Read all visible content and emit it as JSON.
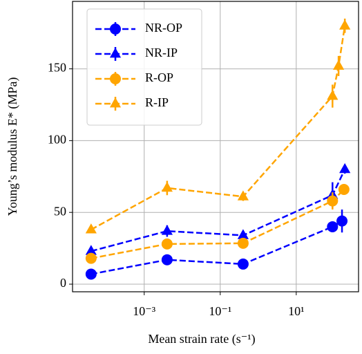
{
  "chart_data": {
    "type": "line",
    "xlabel": "Mean strain rate (s⁻¹)",
    "ylabel": "Young’s modulus E* (MPa)",
    "xscale": "log",
    "xlim": [
      1.3e-05,
      436
    ],
    "ylim": [
      -5.3,
      197
    ],
    "xticks": [
      {
        "value": 0.001,
        "label": "10⁻³"
      },
      {
        "value": 0.1,
        "label": "10⁻¹"
      },
      {
        "value": 10,
        "label": "10¹"
      }
    ],
    "yticks": [
      0,
      50,
      100,
      150
    ],
    "grid": true,
    "legend": "upper left",
    "series": [
      {
        "name": "NR-OP",
        "color": "#0000ff",
        "marker": "circle",
        "x": [
          4e-05,
          0.004,
          0.4,
          90,
          160
        ],
        "values": [
          7,
          17,
          14,
          40,
          44
        ],
        "errors": [
          1,
          2,
          2,
          3,
          8
        ]
      },
      {
        "name": "NR-IP",
        "color": "#0000ff",
        "marker": "triangle",
        "x": [
          4e-05,
          0.004,
          0.4,
          90,
          190
        ],
        "values": [
          23,
          37,
          34,
          62,
          80
        ],
        "errors": [
          2,
          4,
          3,
          9,
          3
        ]
      },
      {
        "name": "R-OP",
        "color": "#ffa500",
        "marker": "circle",
        "x": [
          4e-05,
          0.004,
          0.4,
          90,
          180
        ],
        "values": [
          18,
          28,
          28.5,
          58,
          66
        ],
        "errors": [
          2,
          3,
          2,
          6,
          3
        ]
      },
      {
        "name": "R-IP",
        "color": "#ffa500",
        "marker": "triangle",
        "x": [
          4e-05,
          0.004,
          0.4,
          90,
          130,
          190
        ],
        "values": [
          38,
          67,
          61,
          131,
          152,
          180
        ],
        "errors": [
          2,
          5,
          3,
          8,
          7,
          5
        ]
      }
    ]
  }
}
